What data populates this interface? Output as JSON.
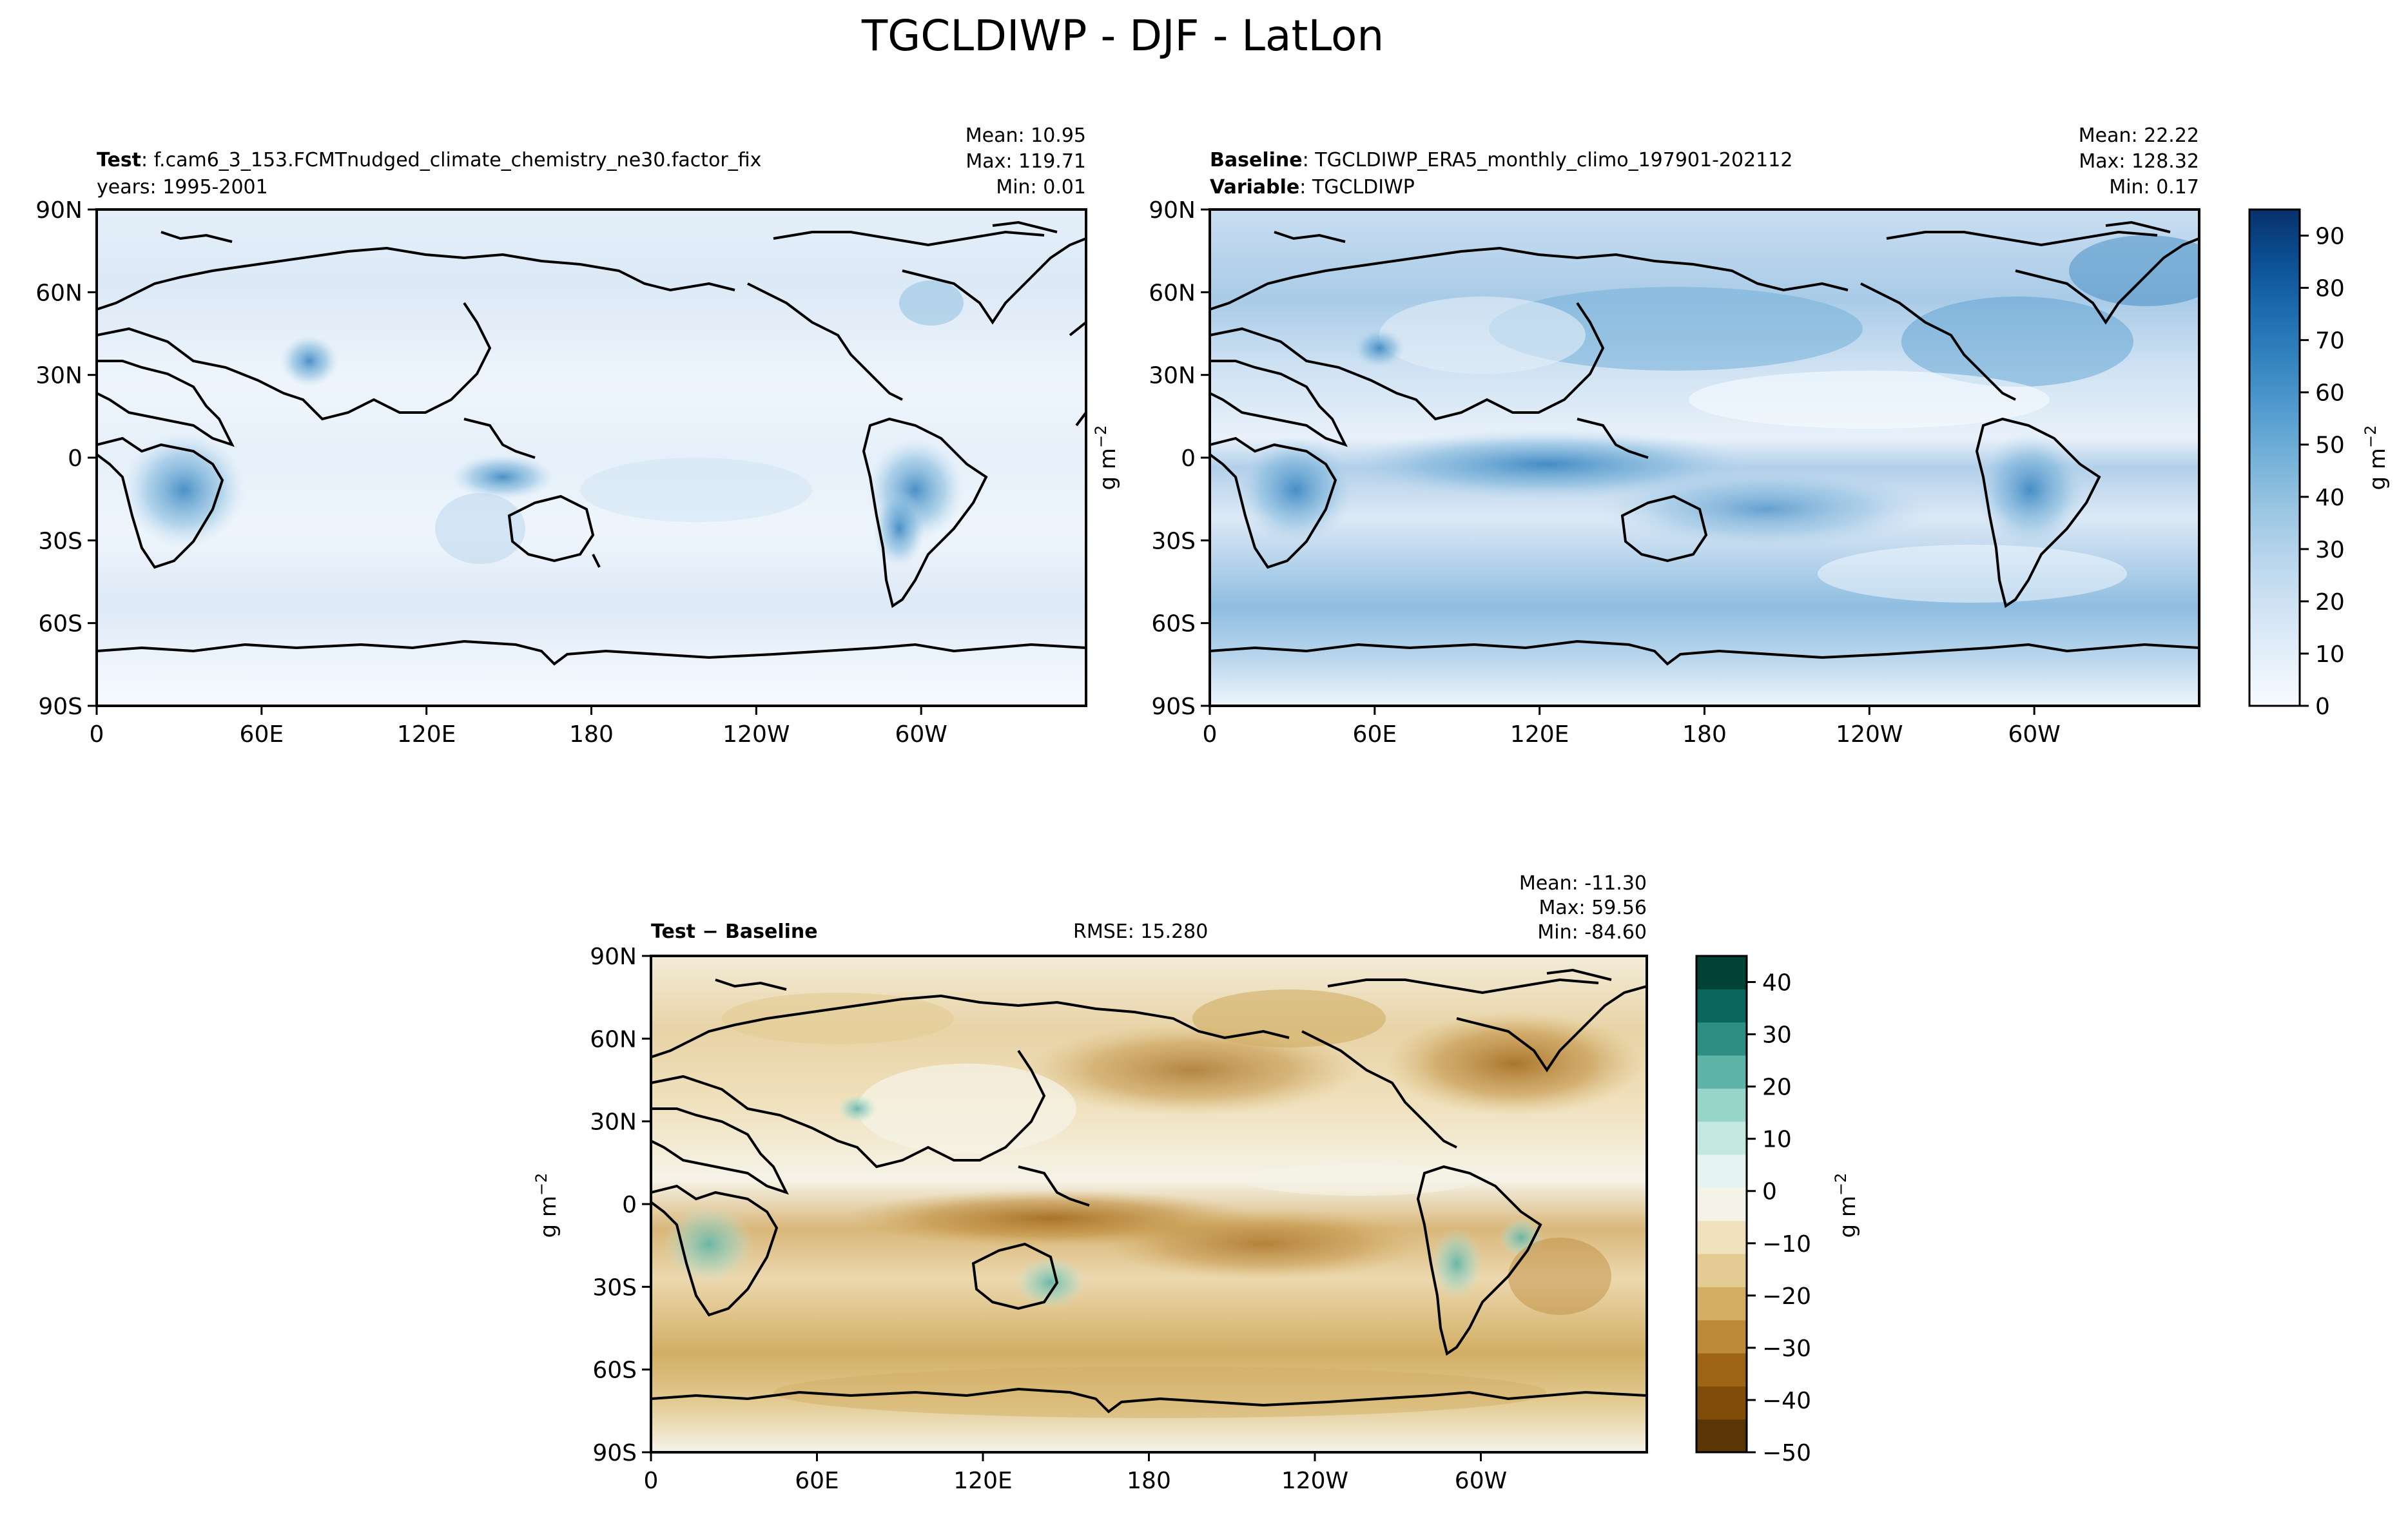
{
  "figure": {
    "title": "TGCLDIWP - DJF - LatLon"
  },
  "colors": {
    "test_blues": [
      "#f7fbff",
      "#e4eff9",
      "#d0e3f4",
      "#b7d5ec",
      "#98c5e2",
      "#74b1d9",
      "#519bce",
      "#3383be",
      "#1c6aaf",
      "#0a4f92",
      "#08306b"
    ],
    "diff_brbg": [
      "#5a3505",
      "#7f4c0a",
      "#9e6416",
      "#bd8a39",
      "#d1ae64",
      "#e3cb93",
      "#f0e1bd",
      "#f5f3e8",
      "#e6f4f1",
      "#c2e8e0",
      "#96d5c7",
      "#5fb4a8",
      "#2d8e84",
      "#09675e",
      "#014237"
    ],
    "land_outline": "#000000"
  },
  "chart_data": [
    {
      "type": "heatmap",
      "panel": "test",
      "title_bold": "Test",
      "title_text": ": f.cam6_3_153.FCMTnudged_climate_chemistry_ne30.factor_fix",
      "subtitle": "years: 1995-2001",
      "stats": {
        "mean": "Mean: 10.95",
        "max": "Max: 119.71",
        "min": "Min:  0.01"
      },
      "xticks": [
        "0",
        "60E",
        "120E",
        "180",
        "120W",
        "60W"
      ],
      "yticks": [
        "90N",
        "60N",
        "30N",
        "0",
        "30S",
        "60S",
        "90S"
      ],
      "xlim": [
        0,
        360
      ],
      "ylim": [
        -90,
        90
      ],
      "ylabel": "",
      "field_mean": 10.95,
      "field_max": 119.71,
      "field_min": 0.01
    },
    {
      "type": "heatmap",
      "panel": "baseline",
      "title_bold": "Baseline",
      "title_text": ": TGCLDIWP_ERA5_monthly_climo_197901-202112",
      "subtitle_bold": "Variable",
      "subtitle_text": ": TGCLDIWP",
      "stats": {
        "mean": "Mean: 22.22",
        "max": "Max: 128.32",
        "min": "Min:  0.17"
      },
      "xticks": [
        "0",
        "60E",
        "120E",
        "180",
        "120W",
        "60W"
      ],
      "yticks": [
        "90N",
        "60N",
        "30N",
        "0",
        "30S",
        "60S",
        "90S"
      ],
      "xlim": [
        0,
        360
      ],
      "ylim": [
        -90,
        90
      ],
      "ylabel": "g m",
      "ylabel_sup": "−2",
      "field_mean": 22.22,
      "field_max": 128.32,
      "field_min": 0.17
    },
    {
      "type": "heatmap",
      "panel": "difference",
      "title_bold": "Test − Baseline",
      "rmse": "RMSE: 15.280",
      "stats": {
        "mean": "Mean: -11.30",
        "max": "Max: 59.56",
        "min": "Min: -84.60"
      },
      "xticks": [
        "0",
        "60E",
        "120E",
        "180",
        "120W",
        "60W"
      ],
      "yticks": [
        "90N",
        "60N",
        "30N",
        "0",
        "30S",
        "60S",
        "90S"
      ],
      "xlim": [
        0,
        360
      ],
      "ylim": [
        -90,
        90
      ],
      "ylabel": "g m",
      "ylabel_sup": "−2",
      "field_mean": -11.3,
      "field_max": 59.56,
      "field_min": -84.6
    }
  ],
  "colorbars": [
    {
      "name": "test-baseline-colorbar",
      "ticks": [
        "0",
        "10",
        "20",
        "30",
        "40",
        "50",
        "60",
        "70",
        "80",
        "90"
      ],
      "range": [
        0,
        95
      ],
      "label": "g m",
      "label_sup": "−2"
    },
    {
      "name": "difference-colorbar",
      "ticks": [
        "40",
        "30",
        "20",
        "10",
        "0",
        "−10",
        "−20",
        "−30",
        "−40",
        "−50"
      ],
      "range": [
        -50,
        45
      ],
      "label": "g m",
      "label_sup": "−2"
    }
  ]
}
